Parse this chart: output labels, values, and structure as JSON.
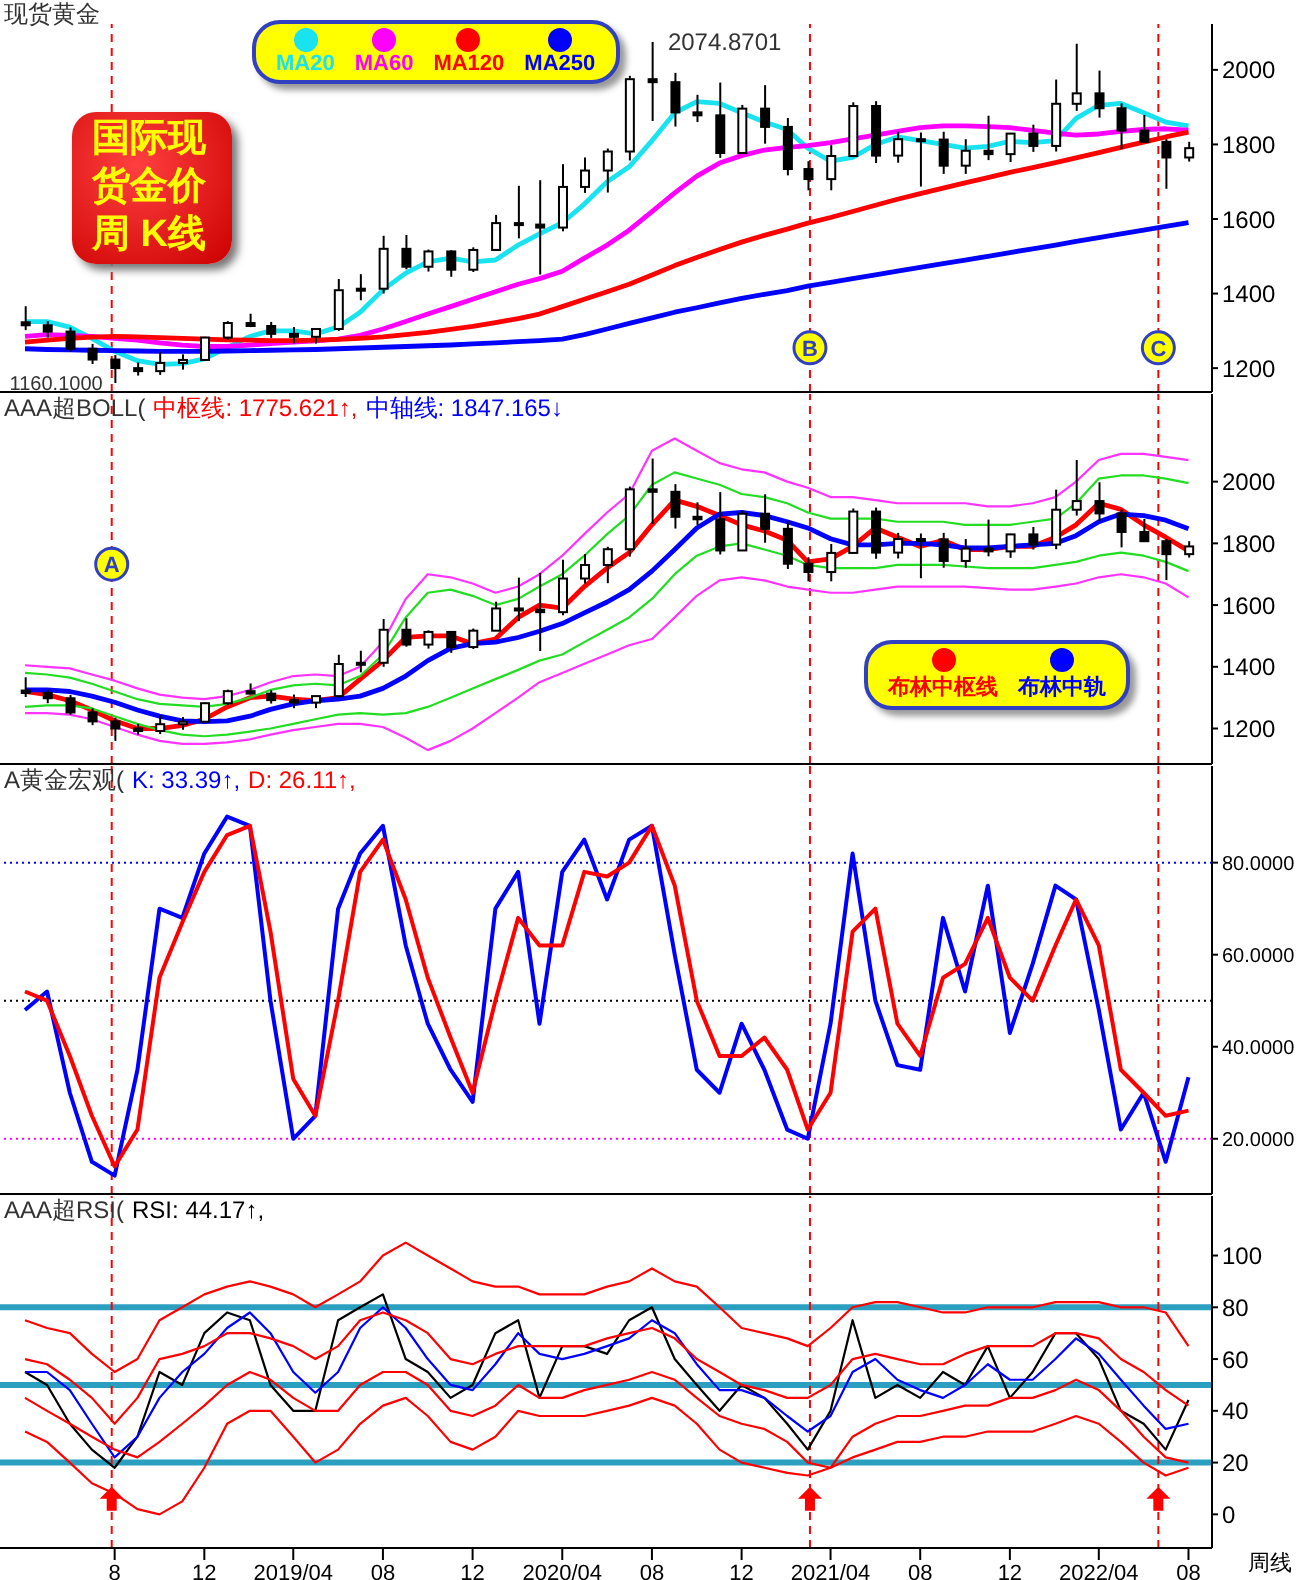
{
  "chart_data": [
    {
      "type": "candlestick",
      "title": "现货黄金",
      "subtitle": "国际现货金价周 K线",
      "legend": "top left",
      "tick_labels": "y",
      "color": "#000000",
      "x": [
        "2018-04-01",
        "2018-05-01",
        "2018-06-01",
        "2018-07-01",
        "2018-08-01",
        "2018-09-01",
        "2018-10-01",
        "2018-11-01",
        "2018-12-01",
        "2019-01-01",
        "2019-02-01",
        "2019-03-01",
        "2019-04-01",
        "2019-05-01",
        "2019-06-01",
        "2019-07-01",
        "2019-08-01",
        "2019-09-01",
        "2019-10-01",
        "2019-11-01",
        "2019-12-01",
        "2020-01-01",
        "2020-02-01",
        "2020-03-01",
        "2020-04-01",
        "2020-05-01",
        "2020-06-01",
        "2020-07-01",
        "2020-08-01",
        "2020-09-01",
        "2020-10-01",
        "2020-11-01",
        "2020-12-01",
        "2021-01-01",
        "2021-02-01",
        "2021-03-01",
        "2021-04-01",
        "2021-05-01",
        "2021-06-01",
        "2021-07-01",
        "2021-08-01",
        "2021-09-01",
        "2021-10-01",
        "2021-11-01",
        "2021-12-01",
        "2022-01-01",
        "2022-02-01",
        "2022-03-01",
        "2022-04-01",
        "2022-05-01",
        "2022-06-01",
        "2022-07-01",
        "2022-08-01"
      ],
      "ohlc": [
        [
          1323,
          1366,
          1302,
          1315
        ],
        [
          1315,
          1326,
          1282,
          1298
        ],
        [
          1298,
          1309,
          1245,
          1252
        ],
        [
          1252,
          1265,
          1211,
          1223
        ],
        [
          1223,
          1235,
          1160.1,
          1200
        ],
        [
          1200,
          1215,
          1180,
          1192
        ],
        [
          1192,
          1243,
          1182,
          1214
        ],
        [
          1214,
          1237,
          1196,
          1222
        ],
        [
          1222,
          1284,
          1221,
          1282
        ],
        [
          1282,
          1326,
          1276,
          1321
        ],
        [
          1321,
          1346,
          1310,
          1313
        ],
        [
          1313,
          1324,
          1281,
          1292
        ],
        [
          1292,
          1310,
          1266,
          1284
        ],
        [
          1284,
          1306,
          1266,
          1305
        ],
        [
          1305,
          1439,
          1300,
          1409
        ],
        [
          1409,
          1452,
          1382,
          1413
        ],
        [
          1413,
          1555,
          1400,
          1520
        ],
        [
          1520,
          1557,
          1465,
          1472
        ],
        [
          1472,
          1518,
          1459,
          1513
        ],
        [
          1513,
          1516,
          1445,
          1464
        ],
        [
          1464,
          1524,
          1458,
          1517
        ],
        [
          1517,
          1611,
          1517,
          1589
        ],
        [
          1589,
          1689,
          1548,
          1585
        ],
        [
          1585,
          1704,
          1451,
          1577
        ],
        [
          1577,
          1747,
          1567,
          1686
        ],
        [
          1686,
          1765,
          1670,
          1730
        ],
        [
          1730,
          1789,
          1671,
          1781
        ],
        [
          1781,
          1984,
          1757,
          1975
        ],
        [
          1975,
          2074.87,
          1863,
          1967
        ],
        [
          1967,
          1992,
          1848,
          1886
        ],
        [
          1886,
          1933,
          1860,
          1878
        ],
        [
          1878,
          1966,
          1764,
          1777
        ],
        [
          1777,
          1906,
          1776,
          1896
        ],
        [
          1896,
          1959,
          1802,
          1847
        ],
        [
          1847,
          1871,
          1717,
          1734
        ],
        [
          1734,
          1755,
          1677,
          1707
        ],
        [
          1707,
          1798,
          1677,
          1769
        ],
        [
          1769,
          1913,
          1766,
          1903
        ],
        [
          1903,
          1916,
          1750,
          1770
        ],
        [
          1770,
          1834,
          1751,
          1814
        ],
        [
          1814,
          1832,
          1687,
          1813
        ],
        [
          1813,
          1834,
          1721,
          1743
        ],
        [
          1743,
          1814,
          1721,
          1783
        ],
        [
          1783,
          1877,
          1758,
          1774
        ],
        [
          1774,
          1831,
          1753,
          1829
        ],
        [
          1829,
          1853,
          1780,
          1796
        ],
        [
          1796,
          1974,
          1781,
          1909
        ],
        [
          1909,
          2070,
          1890,
          1937
        ],
        [
          1937,
          1998,
          1872,
          1897
        ],
        [
          1897,
          1910,
          1787,
          1837
        ],
        [
          1837,
          1879,
          1805,
          1807
        ],
        [
          1807,
          1814,
          1681,
          1765
        ],
        [
          1765,
          1807,
          1754,
          1790
        ]
      ],
      "series": [
        {
          "type": "line",
          "name": "MA20",
          "color": "#19e3f0",
          "values": [
            1325,
            1325,
            1310,
            1280,
            1245,
            1220,
            1210,
            1212,
            1225,
            1255,
            1285,
            1300,
            1300,
            1292,
            1310,
            1350,
            1410,
            1455,
            1485,
            1495,
            1485,
            1490,
            1530,
            1560,
            1590,
            1640,
            1700,
            1740,
            1810,
            1885,
            1915,
            1910,
            1885,
            1860,
            1840,
            1790,
            1755,
            1765,
            1800,
            1820,
            1810,
            1800,
            1790,
            1795,
            1808,
            1805,
            1810,
            1870,
            1905,
            1910,
            1885,
            1860,
            1850
          ]
        },
        {
          "type": "line",
          "name": "MA60",
          "color": "#ff00ff",
          "values": [
            1285,
            1290,
            1288,
            1285,
            1280,
            1275,
            1268,
            1262,
            1258,
            1258,
            1262,
            1266,
            1270,
            1273,
            1278,
            1288,
            1305,
            1325,
            1345,
            1365,
            1385,
            1405,
            1425,
            1440,
            1460,
            1495,
            1530,
            1570,
            1620,
            1670,
            1715,
            1750,
            1770,
            1785,
            1792,
            1797,
            1805,
            1815,
            1825,
            1835,
            1845,
            1850,
            1850,
            1848,
            1845,
            1838,
            1830,
            1825,
            1828,
            1835,
            1840,
            1842,
            1838
          ]
        },
        {
          "type": "line",
          "name": "MA120",
          "color": "#ff0000",
          "values": [
            1270,
            1275,
            1280,
            1283,
            1285,
            1284,
            1282,
            1280,
            1278,
            1276,
            1275,
            1274,
            1274,
            1275,
            1277,
            1280,
            1284,
            1290,
            1296,
            1304,
            1312,
            1322,
            1333,
            1345,
            1365,
            1385,
            1405,
            1425,
            1450,
            1475,
            1497,
            1518,
            1538,
            1556,
            1573,
            1589,
            1604,
            1620,
            1637,
            1653,
            1668,
            1683,
            1697,
            1711,
            1725,
            1738,
            1751,
            1764,
            1778,
            1792,
            1806,
            1820,
            1833
          ]
        },
        {
          "type": "line",
          "name": "MA250",
          "color": "#0000ff",
          "values": [
            1252,
            1250,
            1249,
            1248,
            1247,
            1246,
            1245,
            1245,
            1245,
            1246,
            1247,
            1248,
            1249,
            1250,
            1252,
            1254,
            1256,
            1258,
            1260,
            1262,
            1265,
            1268,
            1271,
            1274,
            1278,
            1290,
            1305,
            1320,
            1335,
            1350,
            1362,
            1375,
            1387,
            1398,
            1408,
            1420,
            1430,
            1440,
            1450,
            1460,
            1470,
            1480,
            1490,
            1500,
            1510,
            1520,
            1530,
            1540,
            1550,
            1560,
            1570,
            1580,
            1590
          ]
        }
      ],
      "xlim": [
        "2018-02-26",
        "2022-09-02"
      ],
      "ylim": [
        1136,
        2123
      ],
      "yticks": [
        1200,
        1400,
        1600,
        1800,
        2000
      ],
      "annotations": [
        {
          "text": "2074.8701",
          "x": "2020-08-01",
          "y": 2074.87
        },
        {
          "text": "1160.1000",
          "x": "2018-08-01",
          "y": 1160.1
        }
      ],
      "ref_lines": [
        {
          "axis": "x",
          "value": "2018-07-28",
          "color": "#ff0000",
          "line_style": "dashed"
        },
        {
          "axis": "x",
          "value": "2021-03-04",
          "label": "B",
          "color": "#ff0000",
          "line_style": "dashed"
        },
        {
          "axis": "x",
          "value": "2022-06-21",
          "label": "C",
          "color": "#ff0000",
          "line_style": "dashed"
        }
      ]
    },
    {
      "type": "candlestick",
      "title": "AAA超BOLL(",
      "legend": "bottom right",
      "tick_labels": "y",
      "color": "#000000",
      "x": [
        "2018-04-01",
        "2018-05-01",
        "2018-06-01",
        "2018-07-01",
        "2018-08-01",
        "2018-09-01",
        "2018-10-01",
        "2018-11-01",
        "2018-12-01",
        "2019-01-01",
        "2019-02-01",
        "2019-03-01",
        "2019-04-01",
        "2019-05-01",
        "2019-06-01",
        "2019-07-01",
        "2019-08-01",
        "2019-09-01",
        "2019-10-01",
        "2019-11-01",
        "2019-12-01",
        "2020-01-01",
        "2020-02-01",
        "2020-03-01",
        "2020-04-01",
        "2020-05-01",
        "2020-06-01",
        "2020-07-01",
        "2020-08-01",
        "2020-09-01",
        "2020-10-01",
        "2020-11-01",
        "2020-12-01",
        "2021-01-01",
        "2021-02-01",
        "2021-03-01",
        "2021-04-01",
        "2021-05-01",
        "2021-06-01",
        "2021-07-01",
        "2021-08-01",
        "2021-09-01",
        "2021-10-01",
        "2021-11-01",
        "2021-12-01",
        "2022-01-01",
        "2022-02-01",
        "2022-03-01",
        "2022-04-01",
        "2022-05-01",
        "2022-06-01",
        "2022-07-01",
        "2022-08-01"
      ],
      "ohlc": [
        [
          1323,
          1366,
          1302,
          1315
        ],
        [
          1315,
          1326,
          1282,
          1298
        ],
        [
          1298,
          1309,
          1245,
          1252
        ],
        [
          1252,
          1265,
          1211,
          1223
        ],
        [
          1223,
          1235,
          1160.1,
          1200
        ],
        [
          1200,
          1215,
          1180,
          1192
        ],
        [
          1192,
          1243,
          1182,
          1214
        ],
        [
          1214,
          1237,
          1196,
          1222
        ],
        [
          1222,
          1284,
          1221,
          1282
        ],
        [
          1282,
          1326,
          1276,
          1321
        ],
        [
          1321,
          1346,
          1310,
          1313
        ],
        [
          1313,
          1324,
          1281,
          1292
        ],
        [
          1292,
          1310,
          1266,
          1284
        ],
        [
          1284,
          1306,
          1266,
          1305
        ],
        [
          1305,
          1439,
          1300,
          1409
        ],
        [
          1409,
          1452,
          1382,
          1413
        ],
        [
          1413,
          1555,
          1400,
          1520
        ],
        [
          1520,
          1557,
          1465,
          1472
        ],
        [
          1472,
          1518,
          1459,
          1513
        ],
        [
          1513,
          1516,
          1445,
          1464
        ],
        [
          1464,
          1524,
          1458,
          1517
        ],
        [
          1517,
          1611,
          1517,
          1589
        ],
        [
          1589,
          1689,
          1548,
          1585
        ],
        [
          1585,
          1704,
          1451,
          1577
        ],
        [
          1577,
          1747,
          1567,
          1686
        ],
        [
          1686,
          1765,
          1670,
          1730
        ],
        [
          1730,
          1789,
          1671,
          1781
        ],
        [
          1781,
          1984,
          1757,
          1975
        ],
        [
          1975,
          2074.87,
          1863,
          1967
        ],
        [
          1967,
          1992,
          1848,
          1886
        ],
        [
          1886,
          1933,
          1860,
          1878
        ],
        [
          1878,
          1966,
          1764,
          1777
        ],
        [
          1777,
          1906,
          1776,
          1896
        ],
        [
          1896,
          1959,
          1802,
          1847
        ],
        [
          1847,
          1871,
          1717,
          1734
        ],
        [
          1734,
          1755,
          1677,
          1707
        ],
        [
          1707,
          1798,
          1677,
          1769
        ],
        [
          1769,
          1913,
          1766,
          1903
        ],
        [
          1903,
          1916,
          1750,
          1770
        ],
        [
          1770,
          1834,
          1751,
          1814
        ],
        [
          1814,
          1832,
          1687,
          1813
        ],
        [
          1813,
          1834,
          1721,
          1743
        ],
        [
          1743,
          1814,
          1721,
          1783
        ],
        [
          1783,
          1877,
          1758,
          1774
        ],
        [
          1774,
          1831,
          1753,
          1829
        ],
        [
          1829,
          1853,
          1780,
          1796
        ],
        [
          1796,
          1974,
          1781,
          1909
        ],
        [
          1909,
          2070,
          1890,
          1937
        ],
        [
          1937,
          1998,
          1872,
          1897
        ],
        [
          1897,
          1910,
          1787,
          1837
        ],
        [
          1837,
          1879,
          1805,
          1807
        ],
        [
          1807,
          1814,
          1681,
          1765
        ],
        [
          1765,
          1807,
          1754,
          1790
        ]
      ],
      "series": [
        {
          "type": "line",
          "name": "布林中枢线",
          "color": "#ff0000",
          "values": [
            1320,
            1310,
            1290,
            1260,
            1225,
            1200,
            1200,
            1210,
            1230,
            1270,
            1300,
            1305,
            1295,
            1290,
            1300,
            1360,
            1420,
            1495,
            1500,
            1500,
            1475,
            1490,
            1560,
            1600,
            1590,
            1660,
            1720,
            1770,
            1860,
            1940,
            1920,
            1890,
            1860,
            1840,
            1810,
            1740,
            1750,
            1790,
            1850,
            1820,
            1790,
            1810,
            1780,
            1780,
            1790,
            1790,
            1820,
            1860,
            1930,
            1910,
            1860,
            1820,
            1775.621
          ]
        },
        {
          "type": "line",
          "name": "布林中轨",
          "color": "#0000ff",
          "values": [
            1325,
            1325,
            1320,
            1305,
            1285,
            1260,
            1240,
            1225,
            1222,
            1225,
            1240,
            1262,
            1280,
            1290,
            1295,
            1305,
            1330,
            1370,
            1420,
            1460,
            1475,
            1480,
            1495,
            1515,
            1540,
            1575,
            1610,
            1650,
            1710,
            1780,
            1850,
            1895,
            1900,
            1890,
            1870,
            1850,
            1815,
            1795,
            1795,
            1800,
            1800,
            1795,
            1785,
            1785,
            1790,
            1795,
            1800,
            1825,
            1870,
            1895,
            1890,
            1875,
            1847.165
          ]
        },
        {
          "type": "line",
          "color": "#22dd22",
          "values": [
            1380,
            1375,
            1365,
            1345,
            1320,
            1295,
            1280,
            1275,
            1270,
            1280,
            1300,
            1325,
            1340,
            1345,
            1340,
            1370,
            1440,
            1560,
            1640,
            1650,
            1630,
            1600,
            1620,
            1660,
            1700,
            1760,
            1830,
            1890,
            1990,
            2030,
            2010,
            1990,
            1960,
            1950,
            1930,
            1900,
            1880,
            1880,
            1880,
            1870,
            1870,
            1870,
            1860,
            1860,
            1860,
            1870,
            1880,
            1930,
            2010,
            2020,
            2020,
            2010,
            1995
          ]
        },
        {
          "type": "line",
          "color": "#22dd22",
          "values": [
            1270,
            1275,
            1275,
            1265,
            1240,
            1215,
            1195,
            1180,
            1175,
            1180,
            1190,
            1200,
            1215,
            1230,
            1245,
            1250,
            1245,
            1250,
            1270,
            1300,
            1330,
            1360,
            1390,
            1420,
            1440,
            1480,
            1520,
            1560,
            1620,
            1700,
            1760,
            1790,
            1800,
            1780,
            1760,
            1730,
            1720,
            1720,
            1720,
            1730,
            1730,
            1730,
            1725,
            1720,
            1720,
            1720,
            1730,
            1740,
            1760,
            1770,
            1760,
            1740,
            1710
          ]
        },
        {
          "type": "line",
          "color": "#ff33ff",
          "values": [
            1405,
            1400,
            1395,
            1375,
            1355,
            1330,
            1310,
            1300,
            1295,
            1305,
            1325,
            1350,
            1370,
            1375,
            1370,
            1400,
            1480,
            1620,
            1700,
            1690,
            1670,
            1640,
            1660,
            1700,
            1760,
            1830,
            1900,
            1960,
            2100,
            2140,
            2100,
            2060,
            2040,
            2030,
            2000,
            1980,
            1950,
            1950,
            1940,
            1930,
            1930,
            1930,
            1930,
            1920,
            1920,
            1930,
            1950,
            2000,
            2070,
            2090,
            2090,
            2080,
            2070
          ]
        },
        {
          "type": "line",
          "color": "#ff33ff",
          "values": [
            1250,
            1250,
            1245,
            1230,
            1205,
            1180,
            1160,
            1150,
            1150,
            1155,
            1165,
            1180,
            1195,
            1205,
            1215,
            1215,
            1205,
            1170,
            1130,
            1160,
            1200,
            1250,
            1300,
            1350,
            1380,
            1410,
            1440,
            1470,
            1490,
            1560,
            1630,
            1680,
            1690,
            1680,
            1660,
            1650,
            1640,
            1640,
            1650,
            1660,
            1660,
            1660,
            1660,
            1655,
            1650,
            1650,
            1660,
            1670,
            1690,
            1700,
            1690,
            1670,
            1625
          ]
        }
      ],
      "xlim": [
        "2018-02-26",
        "2022-09-02"
      ],
      "ylim": [
        1085,
        2284
      ],
      "yticks": [
        1200,
        1400,
        1600,
        1800,
        2000
      ],
      "annotations": [
        "中枢线: 1775.621↑,",
        "中轴线: 1847.165↓"
      ],
      "ref_lines": [
        {
          "axis": "x",
          "value": "2018-07-28",
          "label": "A",
          "color": "#ff0000",
          "line_style": "dashed"
        },
        {
          "axis": "x",
          "value": "2021-03-04",
          "color": "#ff0000",
          "line_style": "dashed"
        },
        {
          "axis": "x",
          "value": "2022-06-21",
          "color": "#ff0000",
          "line_style": "dashed"
        }
      ]
    },
    {
      "type": "line",
      "title": "A黄金宏观(",
      "tick_labels": "y",
      "x": [
        "2018-04-01",
        "2018-05-01",
        "2018-06-01",
        "2018-07-01",
        "2018-08-01",
        "2018-09-01",
        "2018-10-01",
        "2018-11-01",
        "2018-12-01",
        "2019-01-01",
        "2019-02-01",
        "2019-03-01",
        "2019-04-01",
        "2019-05-01",
        "2019-06-01",
        "2019-07-01",
        "2019-08-01",
        "2019-09-01",
        "2019-10-01",
        "2019-11-01",
        "2019-12-01",
        "2020-01-01",
        "2020-02-01",
        "2020-03-01",
        "2020-04-01",
        "2020-05-01",
        "2020-06-01",
        "2020-07-01",
        "2020-08-01",
        "2020-09-01",
        "2020-10-01",
        "2020-11-01",
        "2020-12-01",
        "2021-01-01",
        "2021-02-01",
        "2021-03-01",
        "2021-04-01",
        "2021-05-01",
        "2021-06-01",
        "2021-07-01",
        "2021-08-01",
        "2021-09-01",
        "2021-10-01",
        "2021-11-01",
        "2021-12-01",
        "2022-01-01",
        "2022-02-01",
        "2022-03-01",
        "2022-04-01",
        "2022-05-01",
        "2022-06-01",
        "2022-07-01",
        "2022-08-01"
      ],
      "series": [
        {
          "type": "line",
          "color": "#0000ff",
          "values": [
            48,
            52,
            30,
            15,
            12,
            35,
            70,
            68,
            82,
            90,
            88,
            50,
            20,
            25,
            70,
            82,
            88,
            62,
            45,
            35,
            28,
            70,
            78,
            45,
            78,
            85,
            72,
            85,
            88,
            60,
            35,
            30,
            45,
            35,
            22,
            20,
            45,
            82,
            50,
            36,
            35,
            68,
            52,
            75,
            43,
            58,
            75,
            72,
            48,
            22,
            30,
            15,
            33.39
          ]
        },
        {
          "type": "line",
          "color": "#ff0000",
          "values": [
            52,
            50,
            38,
            25,
            14,
            22,
            55,
            67,
            78,
            86,
            88,
            65,
            33,
            25,
            50,
            78,
            85,
            72,
            55,
            42,
            30,
            50,
            68,
            62,
            62,
            78,
            77,
            80,
            88,
            75,
            50,
            38,
            38,
            42,
            35,
            22,
            30,
            65,
            70,
            45,
            38,
            55,
            58,
            68,
            55,
            50,
            62,
            72,
            62,
            35,
            30,
            25,
            26.11
          ]
        }
      ],
      "xlim": [
        "2018-02-26",
        "2022-09-02"
      ],
      "ylim": [
        8,
        101
      ],
      "yticks": [
        {
          "value": 20,
          "label": "20.0000"
        },
        {
          "value": 40,
          "label": "40.0000"
        },
        {
          "value": 60,
          "label": "60.0000"
        },
        {
          "value": 80,
          "label": "80.0000"
        }
      ],
      "annotations": [
        "K: 33.39↑,",
        "D: 26.11↑,"
      ],
      "ref_lines": [
        {
          "axis": "y",
          "value": 80,
          "color": "#0000ff",
          "line_style": "dotted"
        },
        {
          "axis": "y",
          "value": 50,
          "color": "#000000",
          "line_style": "dotted"
        },
        {
          "axis": "y",
          "value": 20,
          "color": "#ff00ff",
          "line_style": "dotted"
        },
        {
          "axis": "x",
          "value": "2018-07-28",
          "color": "#ff0000",
          "line_style": "dashed"
        },
        {
          "axis": "x",
          "value": "2021-03-04",
          "color": "#ff0000",
          "line_style": "dashed"
        },
        {
          "axis": "x",
          "value": "2022-06-21",
          "color": "#ff0000",
          "line_style": "dashed"
        }
      ]
    },
    {
      "type": "line",
      "title": "AAA超RSI(",
      "xlabel": "周线",
      "x": [
        "2018-04-01",
        "2018-05-01",
        "2018-06-01",
        "2018-07-01",
        "2018-08-01",
        "2018-09-01",
        "2018-10-01",
        "2018-11-01",
        "2018-12-01",
        "2019-01-01",
        "2019-02-01",
        "2019-03-01",
        "2019-04-01",
        "2019-05-01",
        "2019-06-01",
        "2019-07-01",
        "2019-08-01",
        "2019-09-01",
        "2019-10-01",
        "2019-11-01",
        "2019-12-01",
        "2020-01-01",
        "2020-02-01",
        "2020-03-01",
        "2020-04-01",
        "2020-05-01",
        "2020-06-01",
        "2020-07-01",
        "2020-08-01",
        "2020-09-01",
        "2020-10-01",
        "2020-11-01",
        "2020-12-01",
        "2021-01-01",
        "2021-02-01",
        "2021-03-01",
        "2021-04-01",
        "2021-05-01",
        "2021-06-01",
        "2021-07-01",
        "2021-08-01",
        "2021-09-01",
        "2021-10-01",
        "2021-11-01",
        "2021-12-01",
        "2022-01-01",
        "2022-02-01",
        "2022-03-01",
        "2022-04-01",
        "2022-05-01",
        "2022-06-01",
        "2022-07-01",
        "2022-08-01"
      ],
      "series": [
        {
          "type": "line",
          "color": "#000000",
          "values": [
            55,
            50,
            35,
            25,
            18,
            30,
            55,
            50,
            70,
            78,
            75,
            50,
            40,
            40,
            75,
            80,
            85,
            60,
            55,
            45,
            50,
            70,
            75,
            45,
            65,
            65,
            62,
            75,
            80,
            60,
            50,
            40,
            50,
            45,
            35,
            25,
            40,
            75,
            45,
            50,
            45,
            55,
            50,
            65,
            45,
            55,
            70,
            70,
            60,
            40,
            35,
            25,
            44.17
          ]
        },
        {
          "type": "line",
          "color": "#0000ff",
          "values": [
            55,
            55,
            48,
            35,
            22,
            30,
            45,
            55,
            62,
            72,
            78,
            70,
            55,
            47,
            55,
            72,
            80,
            72,
            60,
            50,
            48,
            58,
            70,
            62,
            60,
            62,
            65,
            68,
            75,
            70,
            58,
            48,
            48,
            45,
            38,
            32,
            38,
            55,
            60,
            52,
            48,
            45,
            50,
            58,
            52,
            52,
            60,
            68,
            62,
            52,
            42,
            33,
            35
          ]
        },
        {
          "type": "line",
          "color": "#ff0000",
          "values": [
            75,
            72,
            70,
            62,
            55,
            60,
            75,
            80,
            85,
            88,
            90,
            88,
            85,
            80,
            85,
            90,
            100,
            105,
            100,
            95,
            90,
            88,
            88,
            85,
            85,
            85,
            88,
            90,
            95,
            90,
            88,
            80,
            72,
            70,
            68,
            65,
            72,
            80,
            82,
            82,
            80,
            78,
            78,
            80,
            80,
            80,
            82,
            82,
            82,
            80,
            80,
            78,
            65
          ]
        },
        {
          "type": "line",
          "color": "#ff0000",
          "values": [
            60,
            58,
            52,
            45,
            35,
            45,
            60,
            62,
            65,
            70,
            70,
            68,
            65,
            60,
            65,
            75,
            78,
            75,
            70,
            60,
            58,
            62,
            65,
            65,
            65,
            65,
            68,
            70,
            72,
            68,
            60,
            55,
            50,
            48,
            45,
            45,
            50,
            60,
            62,
            60,
            58,
            58,
            62,
            65,
            65,
            65,
            70,
            70,
            68,
            60,
            55,
            48,
            42
          ]
        },
        {
          "type": "line",
          "color": "#ff0000",
          "values": [
            45,
            40,
            35,
            30,
            25,
            22,
            28,
            35,
            42,
            50,
            55,
            52,
            45,
            40,
            40,
            50,
            55,
            55,
            50,
            40,
            38,
            42,
            50,
            45,
            45,
            48,
            50,
            52,
            55,
            52,
            45,
            38,
            35,
            33,
            28,
            20,
            18,
            30,
            35,
            38,
            38,
            40,
            42,
            42,
            45,
            45,
            48,
            52,
            48,
            40,
            30,
            22,
            20
          ]
        },
        {
          "type": "line",
          "color": "#ff0000",
          "values": [
            32,
            28,
            20,
            12,
            8,
            2,
            0,
            5,
            18,
            35,
            40,
            40,
            30,
            20,
            25,
            35,
            42,
            45,
            38,
            28,
            25,
            30,
            40,
            38,
            38,
            38,
            40,
            42,
            45,
            42,
            35,
            25,
            20,
            18,
            16,
            15,
            18,
            22,
            25,
            28,
            28,
            30,
            30,
            32,
            32,
            32,
            35,
            38,
            35,
            28,
            20,
            15,
            18
          ]
        }
      ],
      "xlim": [
        "2018-02-26",
        "2022-09-02"
      ],
      "xticks": [
        {
          "value": "2018-08-01",
          "label": "8"
        },
        {
          "value": "2018-12-01",
          "label": "12"
        },
        {
          "value": "2019-04-01",
          "label": "2019/04"
        },
        {
          "value": "2019-08-01",
          "label": "08"
        },
        {
          "value": "2019-12-01",
          "label": "12"
        },
        {
          "value": "2020-04-01",
          "label": "2020/04"
        },
        {
          "value": "2020-08-01",
          "label": "08"
        },
        {
          "value": "2020-12-01",
          "label": "12"
        },
        {
          "value": "2021-04-01",
          "label": "2021/04"
        },
        {
          "value": "2021-08-01",
          "label": "08"
        },
        {
          "value": "2021-12-01",
          "label": "12"
        },
        {
          "value": "2022-04-01",
          "label": "2022/04"
        },
        {
          "value": "2022-08-01",
          "label": "08"
        }
      ],
      "ylim": [
        -13,
        123
      ],
      "yticks": [
        0,
        20,
        40,
        60,
        80,
        100
      ],
      "annotations": [
        "RSI: 44.17↑,"
      ],
      "ref_lines": [
        {
          "axis": "y",
          "value": 80,
          "color": "#2b9fbf",
          "line_style": "solid"
        },
        {
          "axis": "y",
          "value": 50,
          "color": "#2b9fbf",
          "line_style": "solid"
        },
        {
          "axis": "y",
          "value": 20,
          "color": "#2b9fbf",
          "line_style": "solid"
        },
        {
          "axis": "x",
          "value": "2018-07-28",
          "color": "#ff0000",
          "line_style": "dashed"
        },
        {
          "axis": "x",
          "value": "2021-03-04",
          "color": "#ff0000",
          "line_style": "dashed"
        },
        {
          "axis": "x",
          "value": "2022-06-21",
          "color": "#ff0000",
          "line_style": "dashed"
        }
      ]
    }
  ]
}
